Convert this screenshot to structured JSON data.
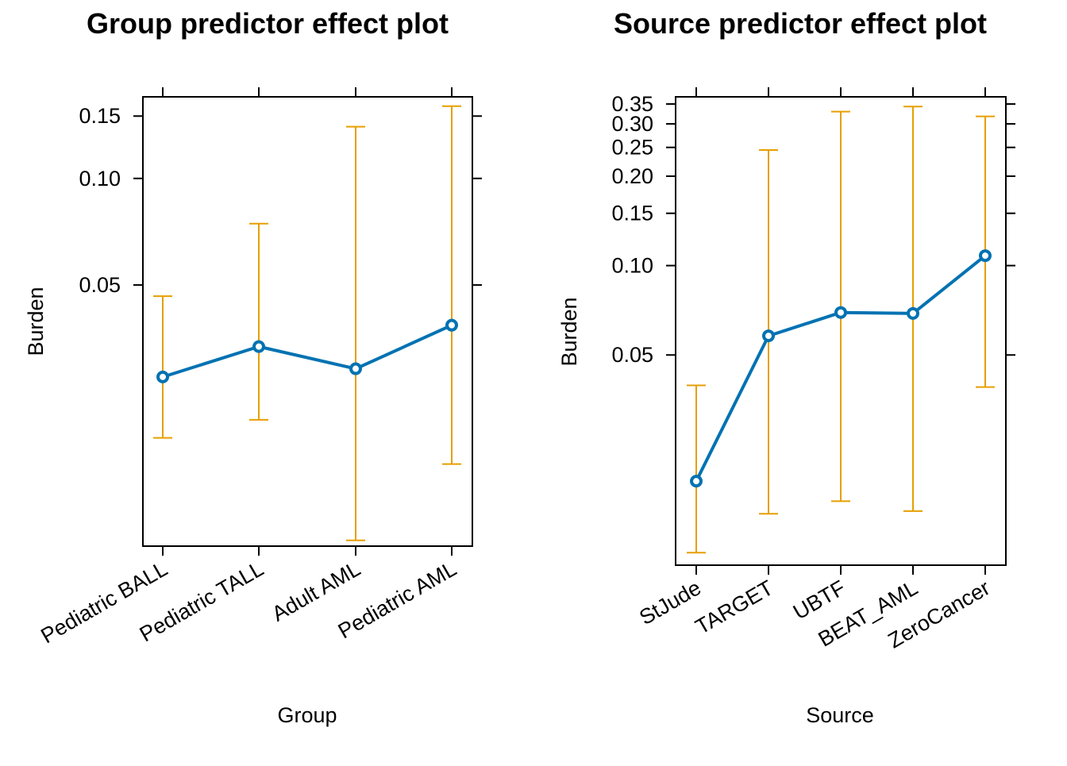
{
  "colors": {
    "line": "#0072B2",
    "ci": "#E69F00",
    "axis": "#000000"
  },
  "chart_data": [
    {
      "type": "line",
      "title": "Group predictor effect plot",
      "xlabel": "Group",
      "ylabel": "Burden",
      "yscale": "log",
      "ylim": [
        0.00915,
        0.17
      ],
      "y_ticks": [
        0.05,
        0.1,
        0.15
      ],
      "y_tick_labels": [
        "0.05",
        "0.10",
        "0.15"
      ],
      "categories": [
        "Pediatric BALL",
        "Pediatric TALL",
        "Adult AML",
        "Pediatric AML"
      ],
      "series": [
        {
          "values": [
            0.0275,
            0.0335,
            0.029,
            0.0385
          ],
          "lower": [
            0.0185,
            0.0208,
            0.0095,
            0.0156
          ],
          "upper": [
            0.0465,
            0.0745,
            0.14,
            0.16
          ]
        }
      ]
    },
    {
      "type": "line",
      "title": "Source predictor effect plot",
      "xlabel": "Source",
      "ylabel": "Burden",
      "yscale": "log",
      "ylim": [
        0.0098,
        0.37
      ],
      "y_ticks": [
        0.05,
        0.1,
        0.15,
        0.2,
        0.25,
        0.3,
        0.35
      ],
      "y_tick_labels": [
        "0.05",
        "0.10",
        "0.15",
        "0.20",
        "0.25",
        "0.30",
        "0.35"
      ],
      "categories": [
        "StJude",
        "TARGET",
        "UBTF",
        "BEAT_AML",
        "ZeroCancer"
      ],
      "series": [
        {
          "values": [
            0.0188,
            0.058,
            0.0695,
            0.069,
            0.108
          ],
          "lower": [
            0.0108,
            0.0146,
            0.0161,
            0.0149,
            0.039
          ],
          "upper": [
            0.0395,
            0.245,
            0.33,
            0.343,
            0.318
          ]
        }
      ]
    }
  ]
}
